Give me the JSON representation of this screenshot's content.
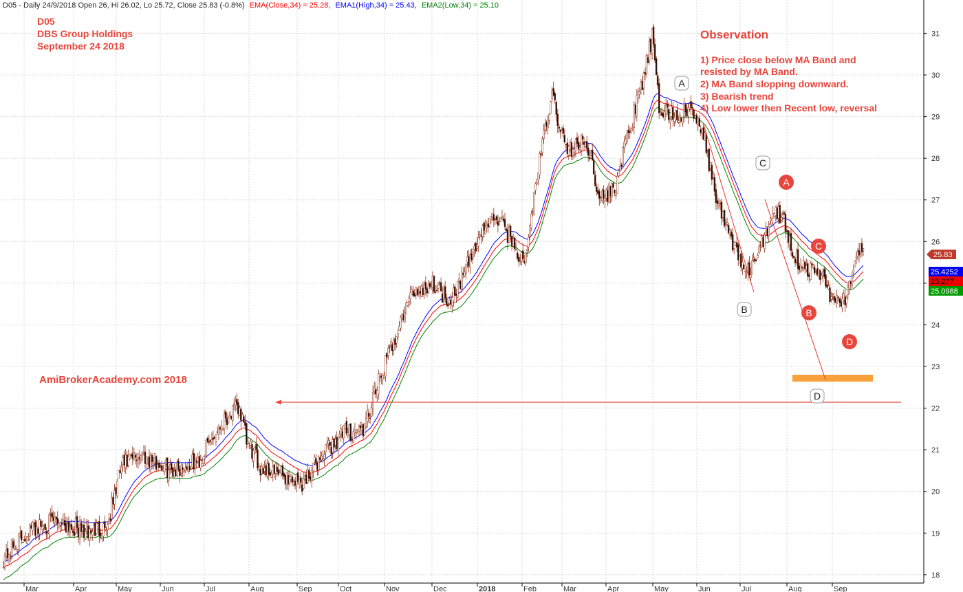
{
  "header": {
    "prefix": "D05 - Daily 24/9/2018 Open 26, Hi 26.02, Lo 25.72, Close 25.83 (-0.8%)",
    "ema_close": "EMA(Close,34) = 25.28,",
    "ema_high": "EMA1(High,34) = 25.43,",
    "ema_low": "EMA2(Low,34) = 25.10"
  },
  "title_block": {
    "ticker": "D05",
    "company": "DBS Group Holdings",
    "date": "September 24 2018"
  },
  "watermark": "AmiBrokerAcademy.com  2018",
  "observation": {
    "title": "Observation",
    "lines": [
      "1) Price close below MA Band and",
      "resisted by MA Band.",
      "2) MA Band slopping downward.",
      "3) Bearish trend",
      "4) Low lower then Recent low, reversal"
    ]
  },
  "price_tags": {
    "close": "25.83",
    "ema_high": "25.4252",
    "ema_close": "25.277",
    "ema_low": "25.0988"
  },
  "colors": {
    "candle_up": "#ffffff",
    "candle_down": "#111111",
    "candle_wick": "#8b2a10",
    "ema_close": "#ff0000",
    "ema_high": "#0000ff",
    "ema_low": "#008000",
    "annotation": "#e8463c",
    "support_bar": "#f7a13a",
    "grid": "#d8d8d8"
  },
  "chart_data": {
    "type": "candlestick",
    "ylim": [
      17.8,
      31.8
    ],
    "yticks": [
      18,
      19,
      20,
      21,
      22,
      23,
      24,
      25,
      26,
      27,
      28,
      29,
      30,
      31
    ],
    "xlabels": [
      "Mar",
      "Apr",
      "May",
      "Jun",
      "Jul",
      "Aug",
      "Sep",
      "Oct",
      "Nov",
      "Dec",
      "2018",
      "Feb",
      "Mar",
      "Apr",
      "May",
      "Jun",
      "Jul",
      "Aug",
      "Sep"
    ],
    "anchors": [
      [
        0,
        18.4
      ],
      [
        20,
        19.1
      ],
      [
        40,
        19.3
      ],
      [
        60,
        19.0
      ],
      [
        75,
        19.2
      ],
      [
        85,
        20.6
      ],
      [
        100,
        20.9
      ],
      [
        120,
        20.5
      ],
      [
        140,
        20.7
      ],
      [
        160,
        21.8
      ],
      [
        170,
        22.0
      ],
      [
        175,
        21.2
      ],
      [
        185,
        20.6
      ],
      [
        200,
        20.4
      ],
      [
        215,
        20.2
      ],
      [
        230,
        20.9
      ],
      [
        245,
        21.4
      ],
      [
        260,
        21.5
      ],
      [
        270,
        22.6
      ],
      [
        285,
        24.0
      ],
      [
        295,
        24.8
      ],
      [
        310,
        25.0
      ],
      [
        320,
        24.6
      ],
      [
        330,
        25.1
      ],
      [
        345,
        26.3
      ],
      [
        355,
        26.6
      ],
      [
        365,
        26.1
      ],
      [
        375,
        25.4
      ],
      [
        385,
        27.8
      ],
      [
        395,
        29.5
      ],
      [
        405,
        28.2
      ],
      [
        420,
        28.4
      ],
      [
        430,
        27.0
      ],
      [
        440,
        27.3
      ],
      [
        450,
        28.6
      ],
      [
        460,
        29.8
      ],
      [
        467,
        30.9
      ],
      [
        472,
        29.2
      ],
      [
        485,
        29.0
      ],
      [
        495,
        29.2
      ],
      [
        505,
        28.4
      ],
      [
        515,
        26.8
      ],
      [
        525,
        26.0
      ],
      [
        535,
        25.2
      ],
      [
        545,
        25.8
      ],
      [
        555,
        26.8
      ],
      [
        562,
        26.5
      ],
      [
        570,
        25.6
      ],
      [
        580,
        25.3
      ],
      [
        590,
        25.2
      ],
      [
        598,
        24.5
      ],
      [
        605,
        24.6
      ],
      [
        612,
        25.2
      ],
      [
        617,
        25.83
      ]
    ],
    "ema_high_end": 25.43,
    "ema_close_end": 25.28,
    "ema_low_end": 25.1,
    "last_close": 25.83,
    "support_level": 22.25,
    "target_zone": 22.8,
    "wave_labels_white": [
      "A",
      "B",
      "C",
      "D"
    ],
    "wave_labels_red": [
      "A",
      "B",
      "C",
      "D"
    ]
  }
}
